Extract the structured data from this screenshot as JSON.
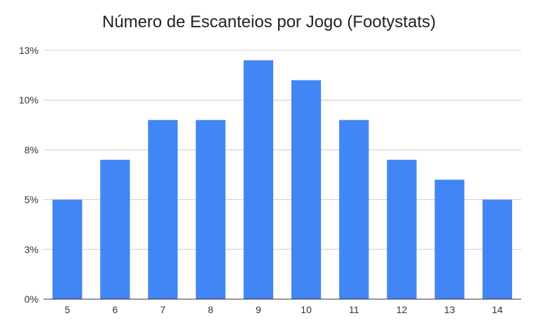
{
  "chart_data": {
    "type": "bar",
    "title": "Número de Escanteios por Jogo (Footystats)",
    "xlabel": "",
    "ylabel": "",
    "categories": [
      "5",
      "6",
      "7",
      "8",
      "9",
      "10",
      "11",
      "12",
      "13",
      "14"
    ],
    "values": [
      5.0,
      7.0,
      9.0,
      9.0,
      12.0,
      11.0,
      9.0,
      7.0,
      6.0,
      5.0
    ],
    "y_ticks": [
      {
        "value": 0,
        "label": "0%"
      },
      {
        "value": 2.5,
        "label": "3%"
      },
      {
        "value": 5,
        "label": "5%"
      },
      {
        "value": 7.5,
        "label": "8%"
      },
      {
        "value": 10,
        "label": "10%"
      },
      {
        "value": 12.5,
        "label": "13%"
      }
    ],
    "ylim": [
      0,
      12.5
    ],
    "grid": true,
    "legend": "none",
    "bar_color": "#4285f4",
    "grid_color": "#cccccc",
    "axis_color": "#333333"
  }
}
